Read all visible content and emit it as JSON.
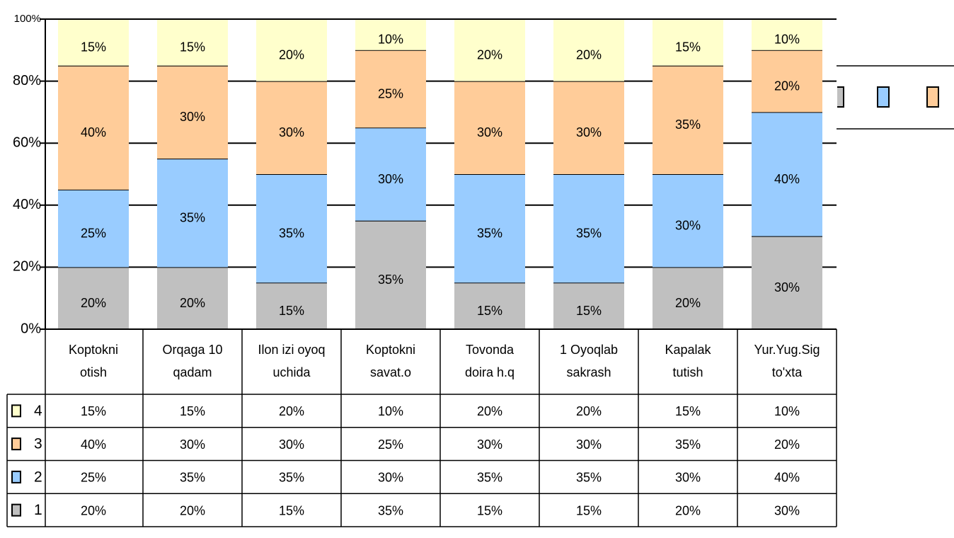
{
  "chart_data": {
    "type": "stacked_bar",
    "categories": [
      "Koptokni otish",
      "Orqaga 10 qadam",
      "Ilon izi oyoq uchida",
      "Koptokni savat.o",
      "Tovonda doira h.q",
      "1 Oyoqlab sakrash",
      "Kapalak tutish",
      "Yur.Yug.Sig to'xta"
    ],
    "series": [
      {
        "name": "1",
        "color": "#c0c0c0",
        "values": [
          20,
          20,
          15,
          35,
          15,
          15,
          20,
          30
        ],
        "value_labels": [
          "20%",
          "20%",
          "15%",
          "35%",
          "15%",
          "15%",
          "20%",
          "30%"
        ]
      },
      {
        "name": "2",
        "color": "#99ccff",
        "values": [
          25,
          35,
          35,
          30,
          35,
          35,
          30,
          40
        ],
        "value_labels": [
          "25%",
          "35%",
          "35%",
          "30%",
          "35%",
          "35%",
          "30%",
          "40%"
        ]
      },
      {
        "name": "3",
        "color": "#ffcc99",
        "values": [
          40,
          30,
          30,
          25,
          30,
          30,
          35,
          20
        ],
        "value_labels": [
          "40%",
          "30%",
          "30%",
          "25%",
          "30%",
          "30%",
          "35%",
          "20%"
        ]
      },
      {
        "name": "4",
        "color": "#ffffcc",
        "values": [
          15,
          15,
          20,
          10,
          20,
          20,
          15,
          10
        ],
        "value_labels": [
          "15%",
          "15%",
          "20%",
          "10%",
          "20%",
          "20%",
          "15%",
          "10%"
        ]
      }
    ],
    "ylim": [
      0,
      100
    ],
    "yticks": [
      {
        "value": 0,
        "label": "0%"
      },
      {
        "value": 20,
        "label": "20%"
      },
      {
        "value": 40,
        "label": "40%"
      },
      {
        "value": 60,
        "label": "60%"
      },
      {
        "value": 80,
        "label": "80%"
      },
      {
        "value": 100,
        "label": "100%"
      }
    ],
    "grid": true,
    "legend": "right",
    "data_table": true
  }
}
